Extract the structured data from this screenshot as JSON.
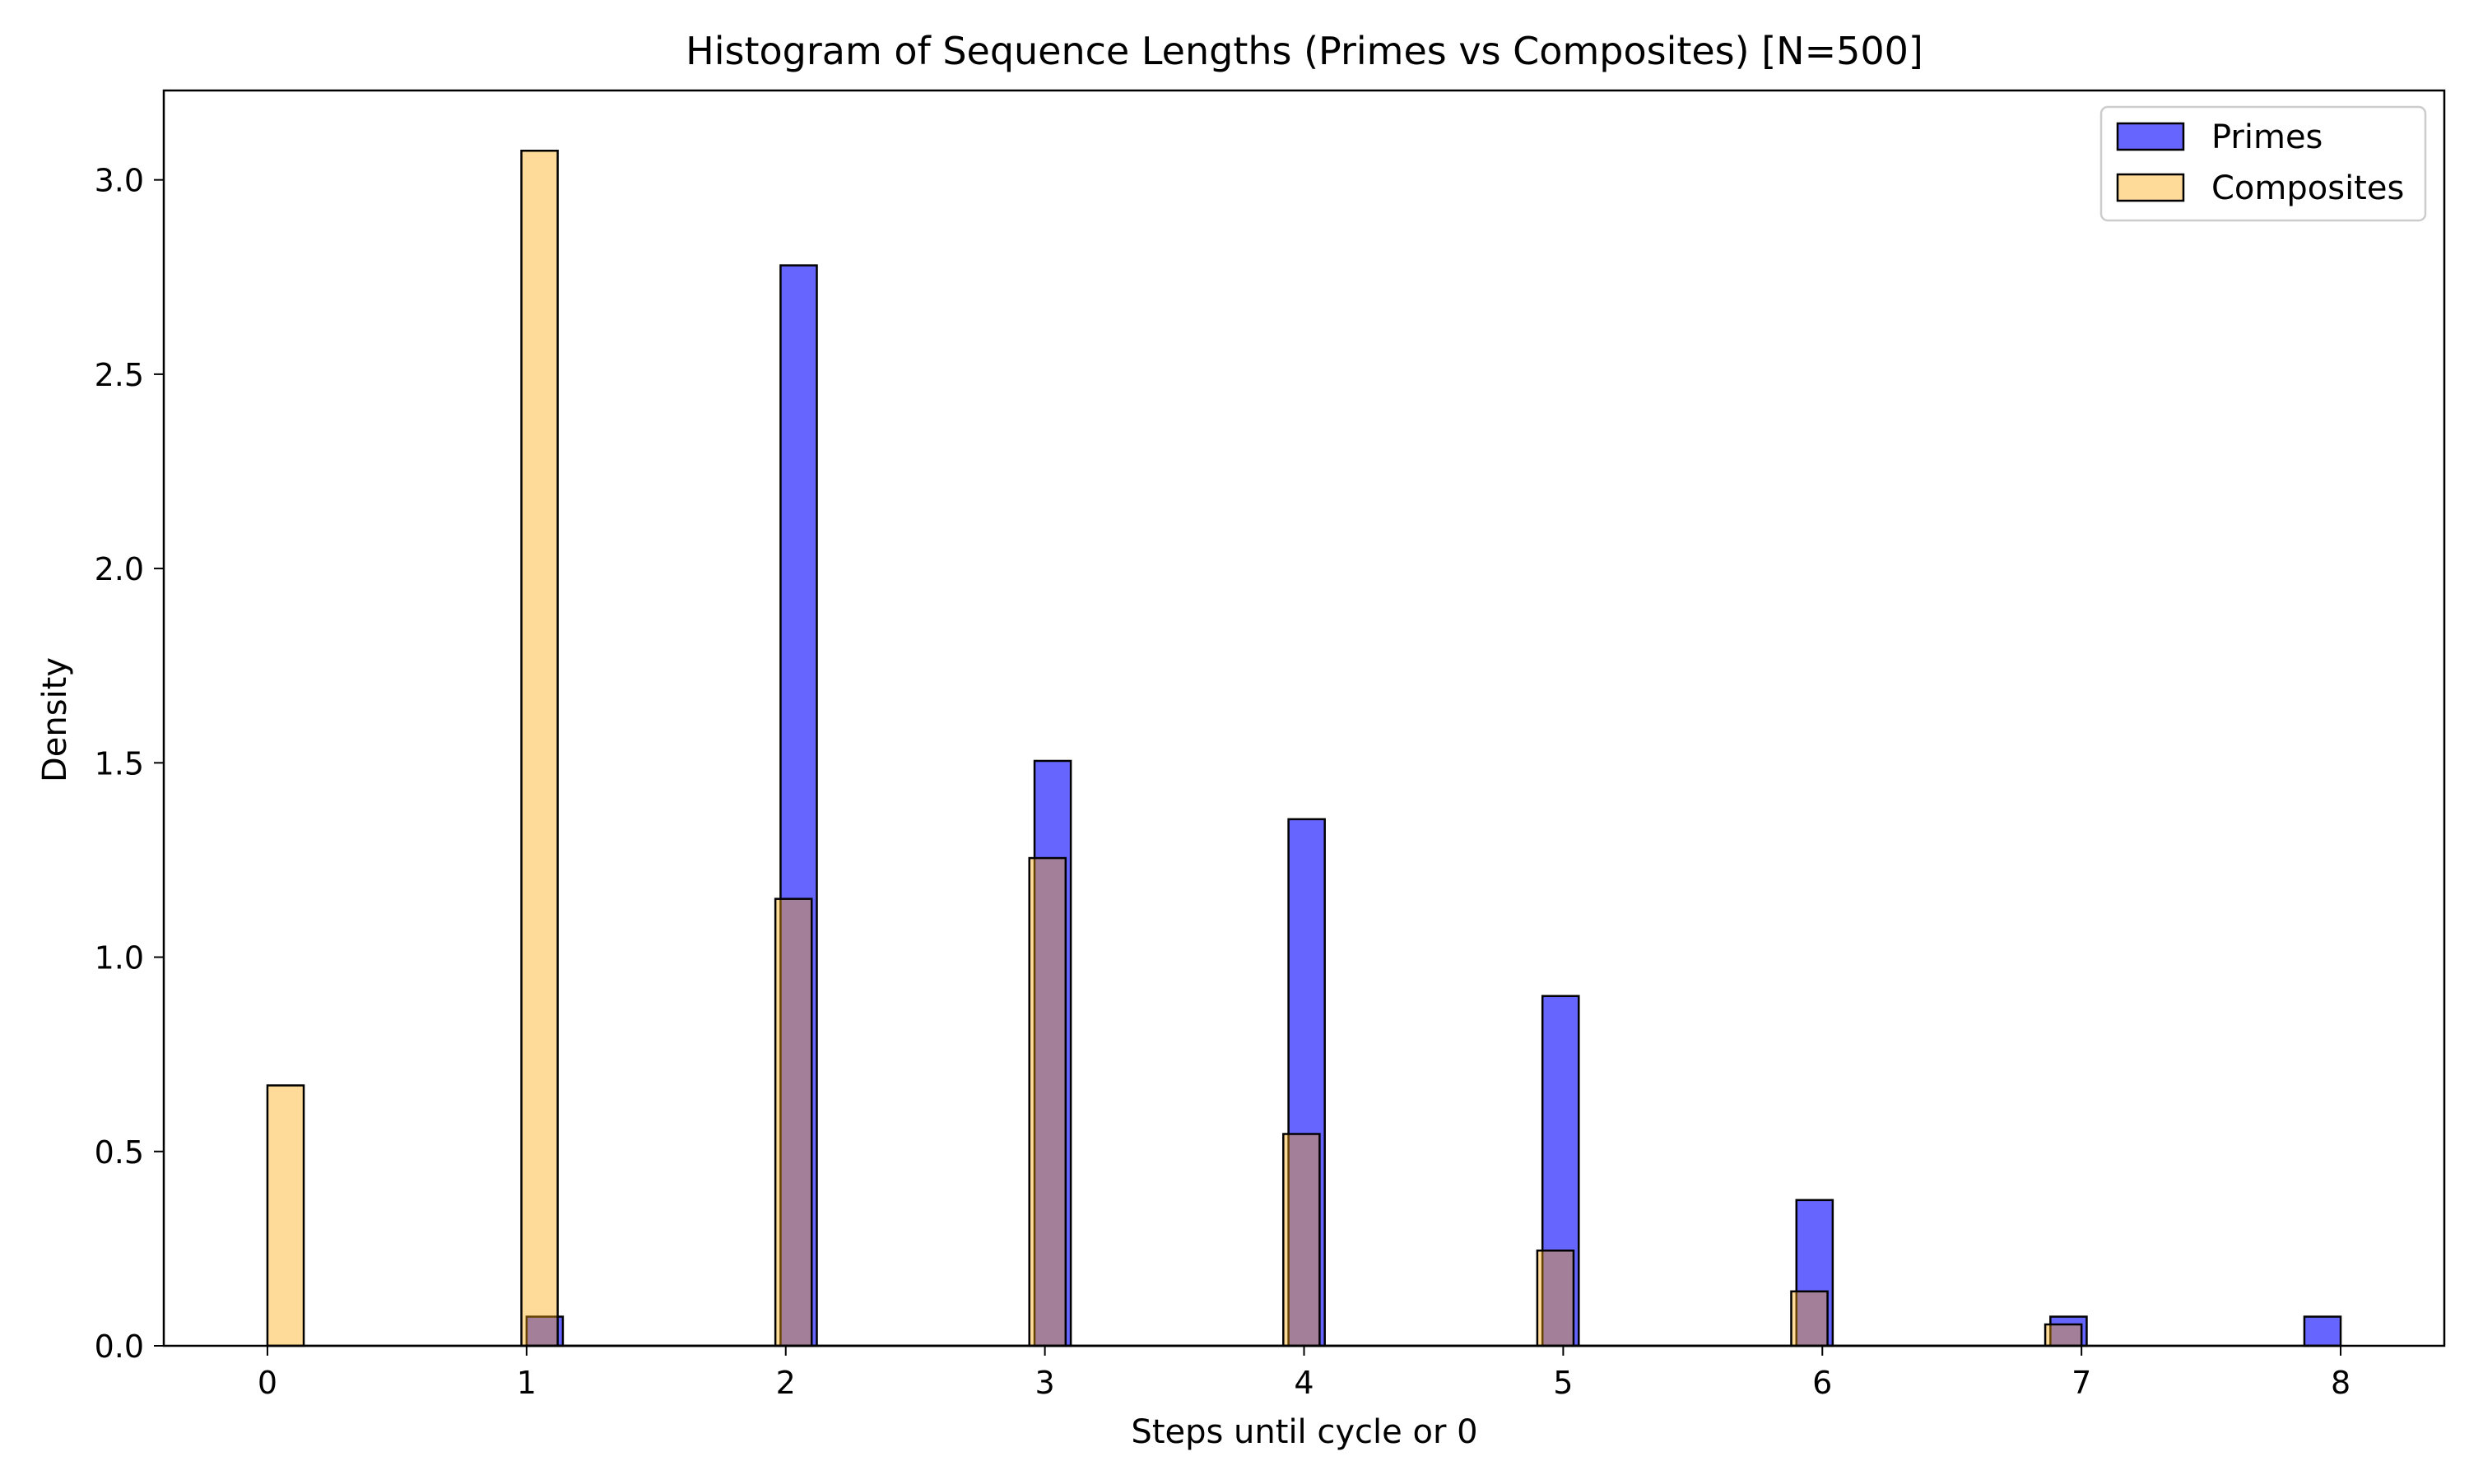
{
  "chart_data": {
    "type": "bar",
    "title": "Histogram of Sequence Lengths (Primes vs Composites) [N=500]",
    "xlabel": "Steps until cycle or 0",
    "ylabel": "Density",
    "xlim": [
      -0.4,
      8.4
    ],
    "ylim": [
      0,
      3.23
    ],
    "xticks": [
      "0",
      "1",
      "2",
      "3",
      "4",
      "5",
      "6",
      "7",
      "8"
    ],
    "yticks": [
      "0.0",
      "0.5",
      "1.0",
      "1.5",
      "2.0",
      "2.5",
      "3.0"
    ],
    "grid": false,
    "legend_position": "top-right",
    "series": [
      {
        "name": "Primes",
        "color": "#0000ff",
        "opacity": 0.6,
        "bin_width": 0.14,
        "bins": [
          {
            "left": 1.0,
            "value": 0.075
          },
          {
            "left": 1.98,
            "value": 2.78
          },
          {
            "left": 2.96,
            "value": 1.505
          },
          {
            "left": 3.94,
            "value": 1.355
          },
          {
            "left": 4.92,
            "value": 0.9
          },
          {
            "left": 5.9,
            "value": 0.375
          },
          {
            "left": 6.88,
            "value": 0.075
          },
          {
            "left": 7.86,
            "value": 0.075
          }
        ]
      },
      {
        "name": "Composites",
        "color": "#ffa500",
        "opacity": 0.4,
        "bin_width": 0.14,
        "bins": [
          {
            "left": 0.0,
            "value": 0.67
          },
          {
            "left": 0.98,
            "value": 3.075
          },
          {
            "left": 1.96,
            "value": 1.15
          },
          {
            "left": 2.94,
            "value": 1.255
          },
          {
            "left": 3.92,
            "value": 0.545
          },
          {
            "left": 4.9,
            "value": 0.245
          },
          {
            "left": 5.88,
            "value": 0.14
          },
          {
            "left": 6.86,
            "value": 0.055
          }
        ]
      }
    ]
  }
}
